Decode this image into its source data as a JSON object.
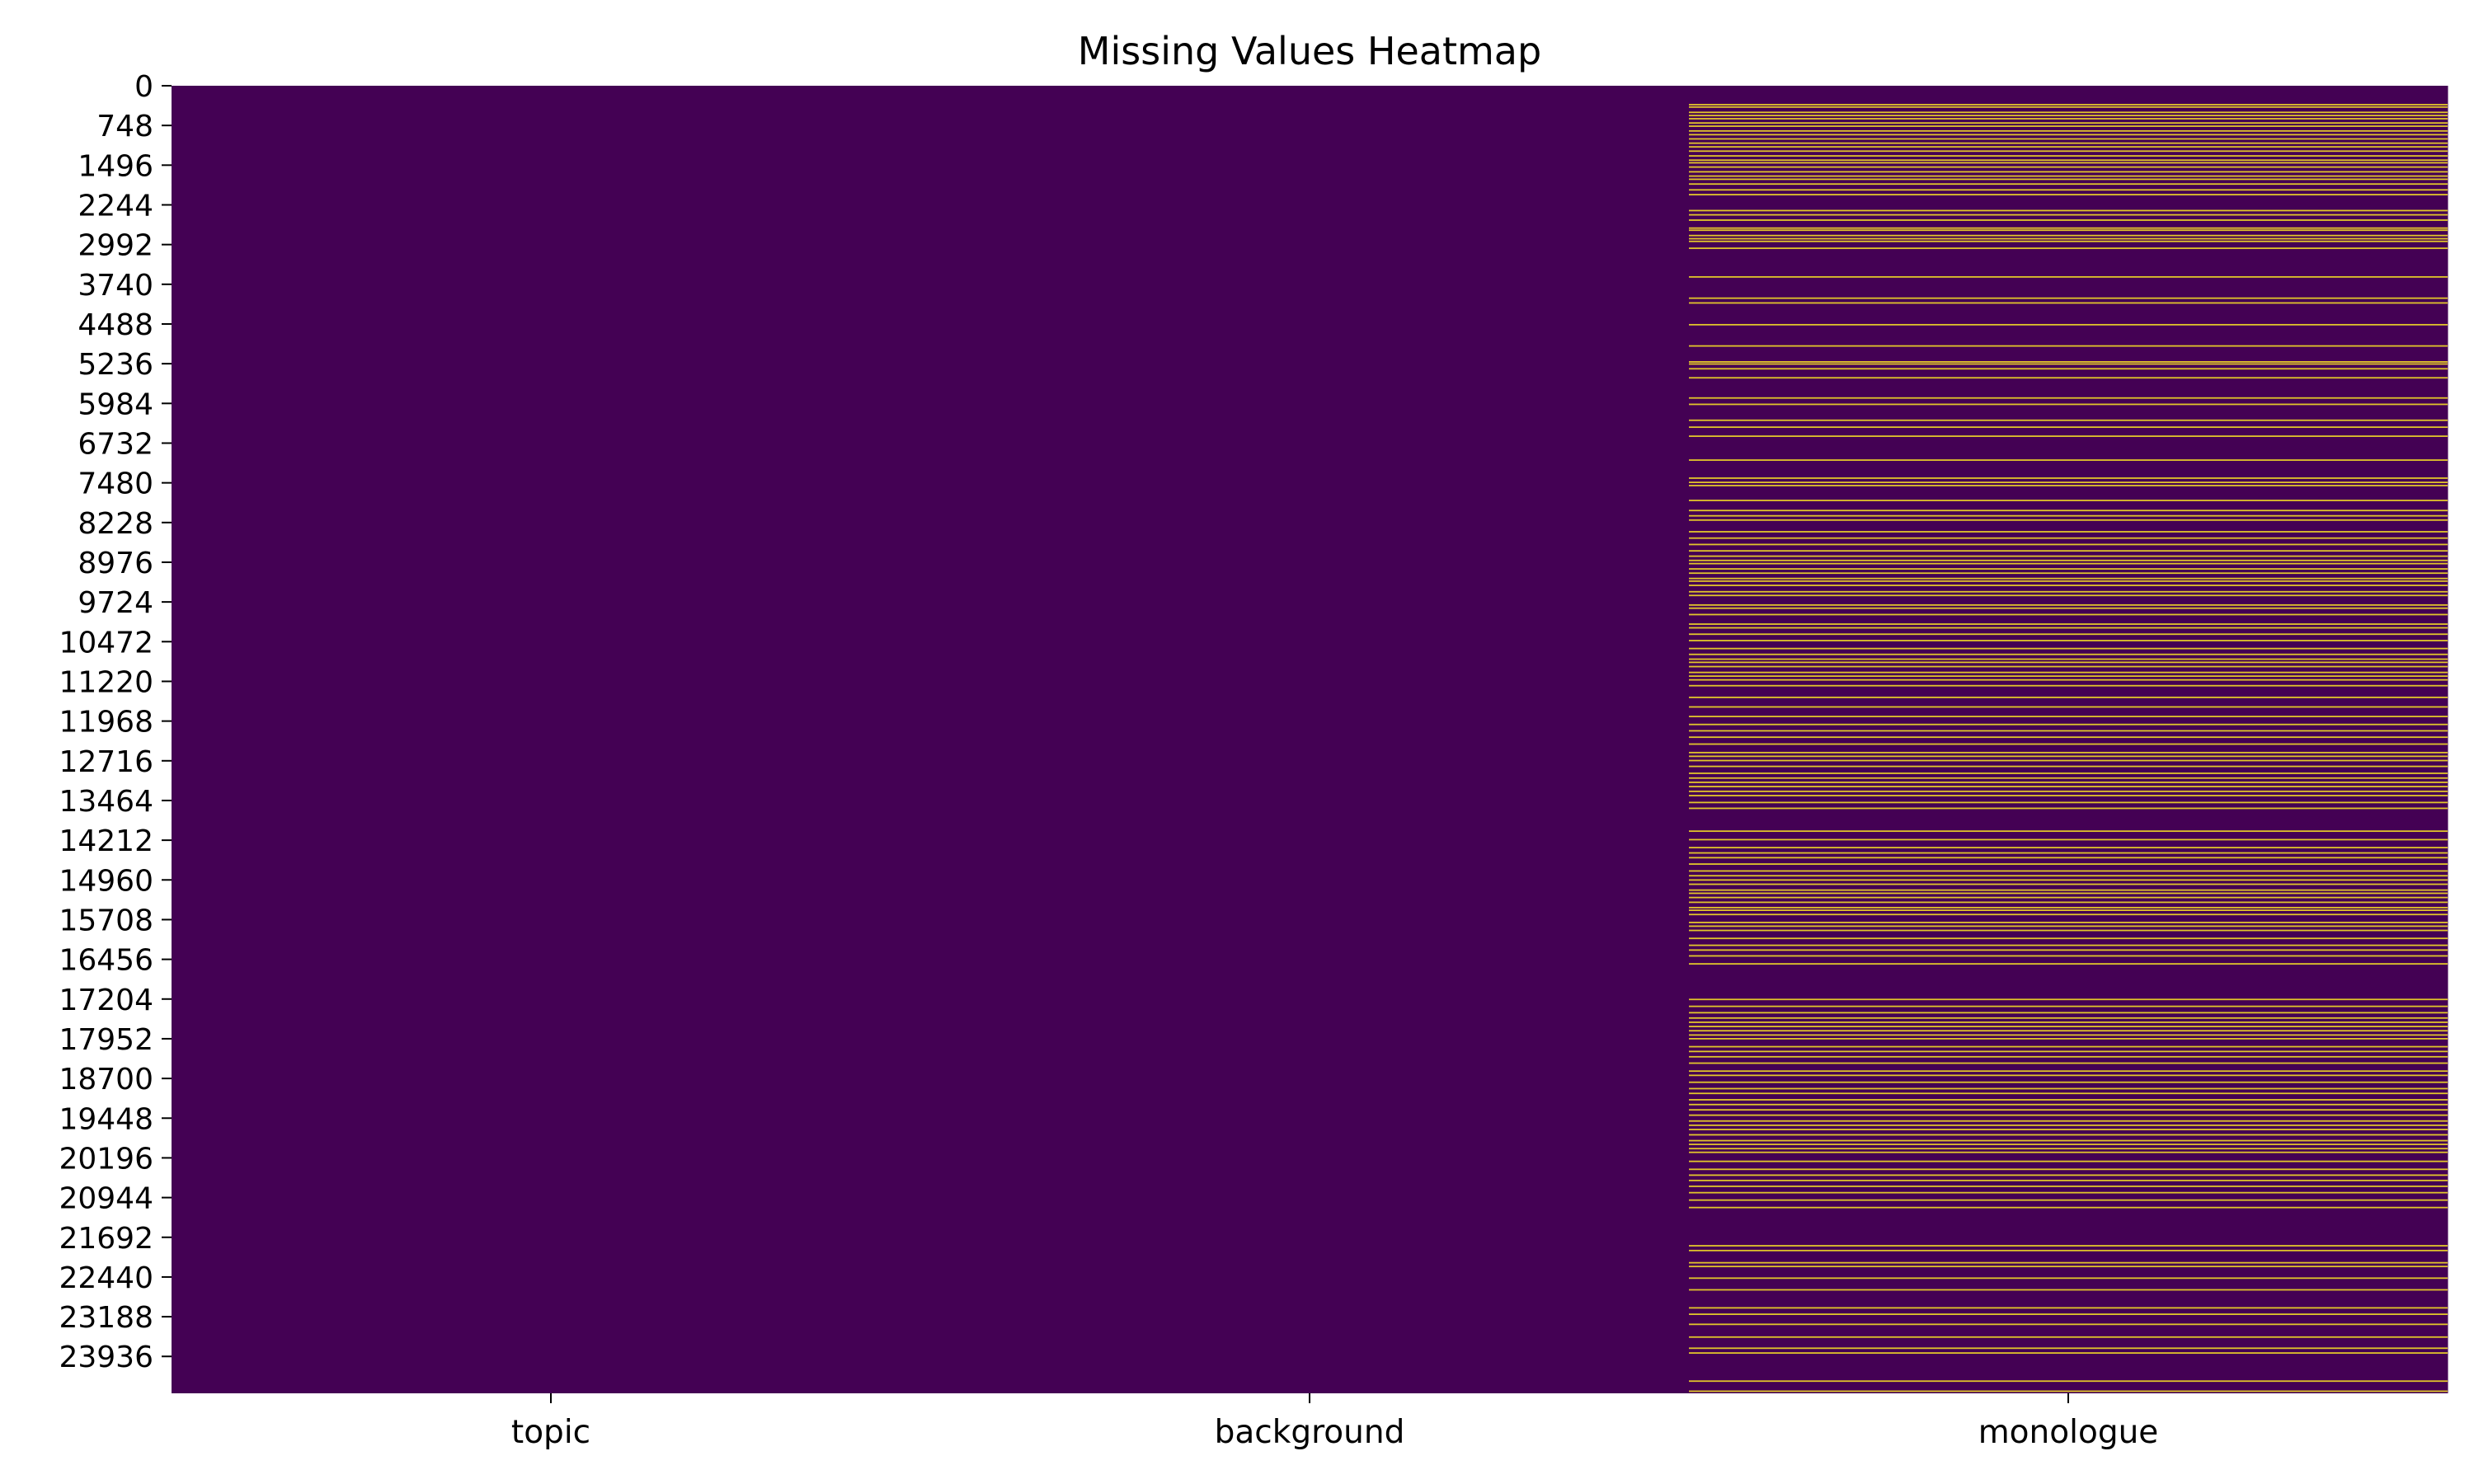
{
  "chart_data": {
    "type": "heatmap",
    "title": "Missing Values Heatmap",
    "xlabel": "",
    "ylabel": "",
    "columns": [
      "topic",
      "background",
      "monologue"
    ],
    "row_count": 24631,
    "y_tick_labels": [
      "0",
      "748",
      "1496",
      "2244",
      "2992",
      "3740",
      "4488",
      "5236",
      "5984",
      "6732",
      "7480",
      "8228",
      "8976",
      "9724",
      "10472",
      "11220",
      "11968",
      "12716",
      "13464",
      "14212",
      "14960",
      "15708",
      "16456",
      "17204",
      "17952",
      "18700",
      "19448",
      "20196",
      "20944",
      "21692",
      "22440",
      "23188",
      "23936"
    ],
    "colors": {
      "present": "#440154",
      "missing": "#fde725"
    },
    "colorbar": false,
    "missing_rows": {
      "topic": [],
      "background": [],
      "monologue": [
        355,
        400,
        500,
        560,
        620,
        700,
        760,
        850,
        920,
        1000,
        1080,
        1150,
        1230,
        1320,
        1400,
        1450,
        1530,
        1620,
        1700,
        1760,
        1850,
        1960,
        2050,
        2350,
        2430,
        2530,
        2680,
        2720,
        2820,
        2880,
        2930,
        3060,
        3600,
        4000,
        4090,
        4500,
        4900,
        5200,
        5240,
        5330,
        5500,
        5880,
        6000,
        6300,
        6430,
        6600,
        7050,
        7390,
        7470,
        7530,
        7810,
        8000,
        8100,
        8180,
        8400,
        8520,
        8640,
        8760,
        8860,
        8940,
        9000,
        9100,
        9180,
        9280,
        9330,
        9410,
        9530,
        9600,
        9780,
        9840,
        9960,
        10140,
        10210,
        10330,
        10450,
        10600,
        10710,
        10800,
        10860,
        10940,
        11050,
        11120,
        11190,
        11300,
        11520,
        11700,
        11880,
        12030,
        12150,
        12270,
        12400,
        12560,
        12630,
        12710,
        12820,
        12950,
        13040,
        13120,
        13200,
        13290,
        13370,
        13500,
        13610,
        14040,
        14200,
        14350,
        14450,
        14540,
        14660,
        14790,
        14880,
        14960,
        15040,
        15150,
        15210,
        15290,
        15380,
        15480,
        15530,
        15610,
        15760,
        15830,
        15910,
        16060,
        16190,
        16280,
        16390,
        16540,
        17210,
        17340,
        17460,
        17560,
        17640,
        17720,
        17800,
        17880,
        17950,
        18100,
        18190,
        18290,
        18410,
        18560,
        18640,
        18770,
        18890,
        18980,
        19100,
        19190,
        19290,
        19390,
        19500,
        19580,
        19660,
        19760,
        19870,
        19940,
        20020,
        20090,
        20260,
        20410,
        20520,
        20620,
        20730,
        20850,
        20990,
        21130,
        21850,
        21940,
        22170,
        22240,
        22460,
        22680,
        23020,
        23140,
        23330,
        23570,
        23780,
        23870,
        24400,
        24590
      ]
    }
  }
}
